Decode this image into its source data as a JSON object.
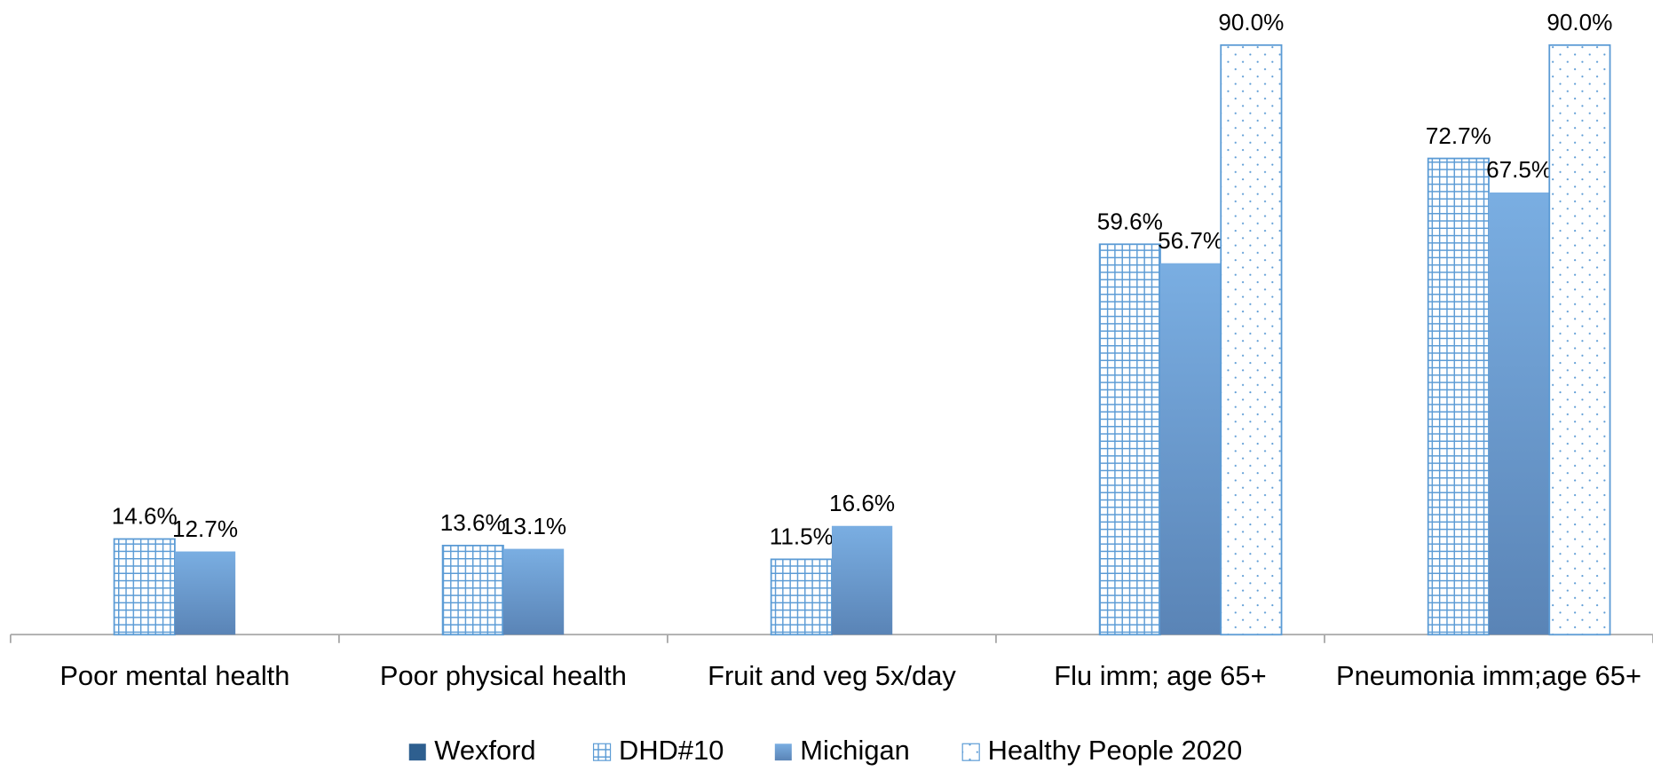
{
  "chart_data": {
    "type": "bar",
    "categories": [
      "Poor mental health",
      "Poor physical health",
      "Fruit and veg 5x/day",
      "Flu imm; age 65+",
      "Pneumonia imm;age 65+"
    ],
    "series": [
      {
        "name": "Wexford",
        "color": "#2e5f8f",
        "values": [
          null,
          null,
          null,
          null,
          null
        ]
      },
      {
        "name": "DHD#10",
        "color": "#5b9bd5",
        "values": [
          14.6,
          13.6,
          11.5,
          59.6,
          72.7
        ],
        "value_labels": [
          "14.6%",
          "13.6%",
          "11.5%",
          "59.6%",
          "72.7%"
        ]
      },
      {
        "name": "Michigan",
        "color": "#6c9fd6",
        "values": [
          12.7,
          13.1,
          16.6,
          56.7,
          67.5
        ],
        "value_labels": [
          "12.7%",
          "13.1%",
          "16.6%",
          "56.7%",
          "67.5%"
        ]
      },
      {
        "name": "Healthy People 2020",
        "color": "#5b9bd5",
        "values": [
          null,
          null,
          null,
          90,
          90
        ],
        "value_labels": [
          null,
          null,
          null,
          "90.0%",
          "90.0%"
        ]
      }
    ],
    "ylim": [
      0,
      90
    ],
    "legend": "bottom"
  }
}
